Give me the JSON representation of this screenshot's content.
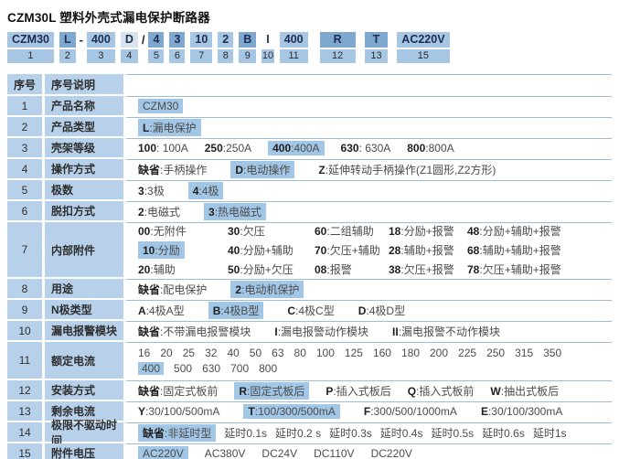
{
  "title": "CZM30L 塑料外壳式漏电保护断路器",
  "colors": {
    "light_blue": "#a7c6e4",
    "medium_blue": "#7fa8d0",
    "pale_blue": "#d8e3f0",
    "cell_blue": "#b7d1ea",
    "highlight_blue": "#a2c6e5",
    "line_blue": "#9dbcd9",
    "option_text": "#4c4c4c",
    "code_text": "#1e2d50"
  },
  "code_strip": {
    "segments": [
      {
        "code": "CZM30",
        "num": "1",
        "tone": "light"
      },
      {
        "code": "L",
        "num": "2",
        "tone": "medium"
      },
      {
        "sep": "-"
      },
      {
        "code": "400",
        "num": "3",
        "tone": "light"
      },
      {
        "code": "D",
        "num": "4",
        "tone": "pale"
      },
      {
        "sep": "/"
      },
      {
        "code": "4",
        "num": "5",
        "tone": "medium"
      },
      {
        "code": "3",
        "num": "6",
        "tone": "medium"
      },
      {
        "code": "10",
        "num": "7",
        "tone": "light"
      },
      {
        "code": "2",
        "num": "8",
        "tone": "light"
      },
      {
        "code": "B",
        "num": "9",
        "tone": "medium"
      },
      {
        "code": "I",
        "num": "10",
        "tone": "none"
      },
      {
        "code": "400",
        "num": "11",
        "tone": "light"
      },
      {
        "code": "R",
        "num": "12",
        "tone": "medium"
      },
      {
        "code": "T",
        "num": "13",
        "tone": "medium"
      },
      {
        "code": "AC220V",
        "num": "15",
        "tone": "light"
      }
    ]
  },
  "table": {
    "header": {
      "col1": "序号",
      "col2": "序号说明"
    },
    "rows": [
      {
        "num": "1",
        "label": "产品名称",
        "options": [
          {
            "t": "CZM30",
            "hl": true
          }
        ]
      },
      {
        "num": "2",
        "label": "产品类型",
        "options": [
          {
            "t": "L:漏电保护",
            "hl": true
          }
        ]
      },
      {
        "num": "3",
        "label": "壳架等级",
        "options": [
          {
            "t": "100: 100A"
          },
          {
            "t": "250:250A"
          },
          {
            "t": "400:400A",
            "hl": true
          },
          {
            "t": "630: 630A"
          },
          {
            "t": "800:800A"
          }
        ]
      },
      {
        "num": "4",
        "label": "操作方式",
        "options": [
          {
            "t": "缺省:手柄操作"
          },
          {
            "t": "D:电动操作",
            "hl": true
          },
          {
            "t": "Z:延伸转动手柄操作(Z1圆形,Z2方形)"
          }
        ]
      },
      {
        "num": "5",
        "label": "极数",
        "options": [
          {
            "t": "3:3极"
          },
          {
            "t": "4:4极",
            "hl": true
          }
        ]
      },
      {
        "num": "6",
        "label": "脱扣方式",
        "options": [
          {
            "t": "2:电磁式"
          },
          {
            "t": "3:热电磁式",
            "hl": true
          }
        ]
      },
      {
        "num": "7",
        "label": "内部附件",
        "lines": [
          [
            {
              "t": "00:无附件"
            },
            {
              "t": "30:欠压"
            },
            {
              "t": "60:二组辅助"
            },
            {
              "t": "18:分励+报警"
            },
            {
              "t": "48:分励+辅助+报警"
            }
          ],
          [
            {
              "t": "10:分励",
              "hl": true
            },
            {
              "t": "40:分励+辅助"
            },
            {
              "t": "70:欠压+辅助"
            },
            {
              "t": "28:辅助+报警"
            },
            {
              "t": "68:辅助+辅助+报警"
            }
          ],
          [
            {
              "t": "20:辅助"
            },
            {
              "t": "50:分励+欠压"
            },
            {
              "t": "08:报警"
            },
            {
              "t": "38:欠压+报警"
            },
            {
              "t": "78:欠压+辅助+报警"
            }
          ]
        ]
      },
      {
        "num": "8",
        "label": "用途",
        "options": [
          {
            "t": "缺省:配电保护"
          },
          {
            "t": "2:电动机保护",
            "hl": true
          }
        ]
      },
      {
        "num": "9",
        "label": "N极类型",
        "options": [
          {
            "t": "A:4极A型"
          },
          {
            "t": "B:4极B型",
            "hl": true
          },
          {
            "t": "C:4极C型"
          },
          {
            "t": "D:4极D型"
          }
        ]
      },
      {
        "num": "10",
        "label": "漏电报警模块",
        "options": [
          {
            "t": "缺省:不带漏电报警模块"
          },
          {
            "t": "I:漏电报警动作模块"
          },
          {
            "t": "II:漏电报警不动作模块"
          }
        ]
      },
      {
        "num": "11",
        "label": "额定电流",
        "lines": [
          [
            {
              "t": "16"
            },
            {
              "t": "20"
            },
            {
              "t": "25"
            },
            {
              "t": "32"
            },
            {
              "t": "40"
            },
            {
              "t": "50"
            },
            {
              "t": "63"
            },
            {
              "t": "80"
            },
            {
              "t": "100"
            },
            {
              "t": "125"
            },
            {
              "t": "160"
            },
            {
              "t": "180"
            },
            {
              "t": "200"
            },
            {
              "t": "225"
            },
            {
              "t": "250"
            },
            {
              "t": "315"
            },
            {
              "t": "350"
            }
          ],
          [
            {
              "t": "400",
              "hl": true
            },
            {
              "t": "500"
            },
            {
              "t": "630"
            },
            {
              "t": "700"
            },
            {
              "t": "800"
            }
          ]
        ]
      },
      {
        "num": "12",
        "label": "安装方式",
        "options": [
          {
            "t": "缺省:固定式板前"
          },
          {
            "t": "R:固定式板后",
            "hl": true
          },
          {
            "t": "P:插入式板后"
          },
          {
            "t": "Q:插入式板前"
          },
          {
            "t": "W:抽出式板后"
          }
        ]
      },
      {
        "num": "13",
        "label": "剩余电流",
        "options": [
          {
            "t": "Y:30/100/500mA"
          },
          {
            "t": "T:100/300/500mA",
            "hl": true
          },
          {
            "t": "F:300/500/1000mA"
          },
          {
            "t": "E:30/100/300mA"
          }
        ]
      },
      {
        "num": "14",
        "label": "极限不驱动时间",
        "options": [
          {
            "t": "缺省:非延时型",
            "hl": true
          },
          {
            "t": "延时0.1s"
          },
          {
            "t": "延时0.2 s"
          },
          {
            "t": "延时0.3s"
          },
          {
            "t": "延时0.4s"
          },
          {
            "t": "延时0.5s"
          },
          {
            "t": "延时0.6s"
          },
          {
            "t": "延时1s"
          }
        ]
      },
      {
        "num": "15",
        "label": "附件电压",
        "options": [
          {
            "t": "AC220V",
            "hl": true
          },
          {
            "t": "AC380V"
          },
          {
            "t": "DC24V"
          },
          {
            "t": "DC110V"
          },
          {
            "t": "DC220V"
          }
        ]
      }
    ]
  }
}
